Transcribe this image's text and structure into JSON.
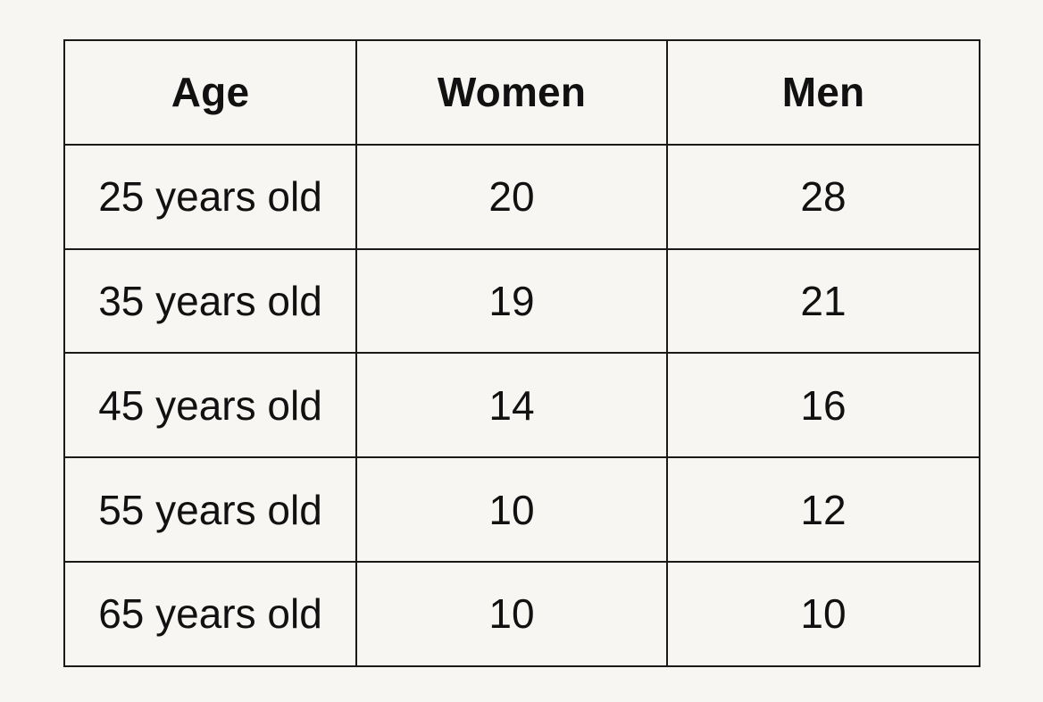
{
  "chart_data": {
    "type": "table",
    "columns": [
      "Age",
      "Women",
      "Men"
    ],
    "rows": [
      [
        "25 years old",
        "20",
        "28"
      ],
      [
        "35 years old",
        "19",
        "21"
      ],
      [
        "45 years old",
        "14",
        "16"
      ],
      [
        "55 years old",
        "10",
        "12"
      ],
      [
        "65 years old",
        "10",
        "10"
      ]
    ]
  },
  "table": {
    "headers": [
      "Age",
      "Women",
      "Men"
    ],
    "rows": [
      [
        "25 years old",
        "20",
        "28"
      ],
      [
        "35 years old",
        "19",
        "21"
      ],
      [
        "45 years old",
        "14",
        "16"
      ],
      [
        "55 years old",
        "10",
        "12"
      ],
      [
        "65 years old",
        "10",
        "10"
      ]
    ]
  }
}
